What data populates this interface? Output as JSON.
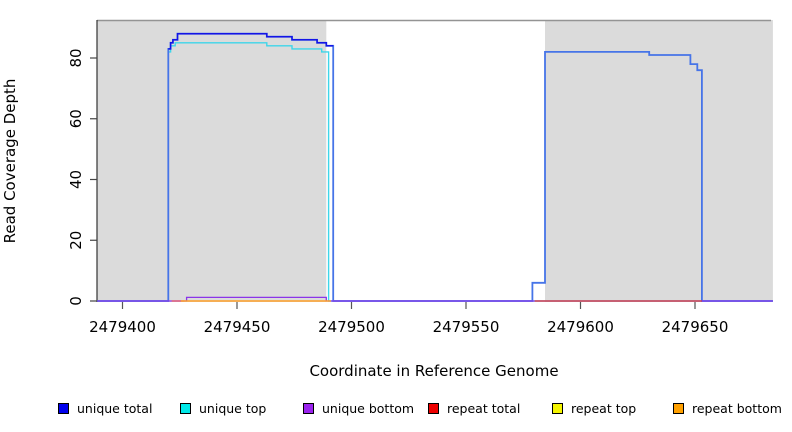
{
  "axes": {
    "x": {
      "label": "Coordinate in Reference Genome",
      "ticks": [
        "2479400",
        "2479450",
        "2479500",
        "2479550",
        "2479600",
        "2479650"
      ],
      "tick_values": [
        2479400,
        2479450,
        2479500,
        2479550,
        2479600,
        2479650
      ],
      "range": [
        2479389,
        2479684
      ]
    },
    "y": {
      "label": "Read Coverage Depth",
      "ticks": [
        "0",
        "20",
        "40",
        "60",
        "80"
      ],
      "tick_values": [
        0,
        20,
        40,
        60,
        80
      ],
      "range": [
        0,
        92
      ]
    }
  },
  "legend": [
    {
      "label": "unique total",
      "color": "#0000EE"
    },
    {
      "label": "unique top",
      "color": "#00E8E8"
    },
    {
      "label": "unique bottom",
      "color": "#9A23EE"
    },
    {
      "label": "repeat total",
      "color": "#EE0000"
    },
    {
      "label": "repeat top",
      "color": "#F5F500"
    },
    {
      "label": "repeat bottom",
      "color": "#FFA000"
    }
  ],
  "chart_data": {
    "type": "line",
    "step_mode": "after",
    "title": "",
    "xlabel": "Coordinate in Reference Genome",
    "ylabel": "Read Coverage Depth",
    "xlim": [
      2479389,
      2479684
    ],
    "ylim": [
      0,
      92
    ],
    "grid": false,
    "legend_position": "bottom",
    "shaded_regions": [
      {
        "from": 2479389,
        "to": 2479489,
        "color": "#dbdbdb"
      },
      {
        "from": 2479584.5,
        "to": 2479684,
        "color": "#dbdbdb"
      }
    ],
    "boundary_line": {
      "depth": 92.5,
      "from": 2479389,
      "to": 2479684,
      "color": "#949494"
    },
    "series": [
      {
        "name": "unique total",
        "color": "#0000EE",
        "steps": [
          [
            2479389,
            0
          ],
          [
            2479420,
            83
          ],
          [
            2479421,
            85
          ],
          [
            2479422,
            86
          ],
          [
            2479424,
            88
          ],
          [
            2479463,
            87
          ],
          [
            2479474,
            86
          ],
          [
            2479485,
            85
          ],
          [
            2479489,
            84
          ],
          [
            2479492,
            0
          ],
          [
            2479579,
            6
          ],
          [
            2479584,
            82
          ],
          [
            2479630,
            81
          ],
          [
            2479648,
            78
          ],
          [
            2479651,
            76
          ],
          [
            2479653,
            0
          ]
        ],
        "end": 2479684
      },
      {
        "name": "unique top",
        "color": "#00E8E8",
        "steps": [
          [
            2479389,
            0
          ],
          [
            2479420,
            82
          ],
          [
            2479421,
            84
          ],
          [
            2479423,
            85
          ],
          [
            2479463,
            84
          ],
          [
            2479474,
            83
          ],
          [
            2479487,
            82
          ],
          [
            2479490,
            0
          ]
        ],
        "end": 2479684
      },
      {
        "name": "unique bottom",
        "color": "#9A23EE",
        "steps": [
          [
            2479389,
            0
          ],
          [
            2479428,
            1
          ],
          [
            2479489,
            0
          ]
        ],
        "end": 2479684
      },
      {
        "name": "repeat total",
        "color": "#EE0000",
        "steps": [
          [
            2479389,
            0
          ]
        ],
        "end": 2479684
      },
      {
        "name": "repeat top",
        "color": "#F5F500",
        "steps": [
          [
            2479389,
            0
          ]
        ],
        "end": 2479684
      },
      {
        "name": "repeat bottom",
        "color": "#FFA000",
        "steps": [
          [
            2479389,
            0
          ],
          [
            2479426,
            0.5
          ],
          [
            2479491,
            0
          ]
        ],
        "end": 2479684
      }
    ],
    "render_layers": [
      {
        "name": "unique-top-line",
        "color": "#3ED6EA",
        "width": 1.4,
        "steps": [
          [
            2479389,
            0
          ],
          [
            2479420,
            82
          ],
          [
            2479421,
            84
          ],
          [
            2479423,
            85
          ],
          [
            2479463,
            84
          ],
          [
            2479474,
            83
          ],
          [
            2479487,
            82
          ],
          [
            2479490,
            0
          ]
        ],
        "end": 2479684
      },
      {
        "name": "unique-total-outline",
        "color": "#4674E8",
        "width": 1.8,
        "steps": [
          [
            2479389,
            0
          ],
          [
            2479420,
            83
          ],
          [
            2479421,
            85
          ],
          [
            2479422,
            86
          ],
          [
            2479424,
            88
          ],
          [
            2479463,
            87
          ],
          [
            2479474,
            86
          ],
          [
            2479485,
            85
          ],
          [
            2479489,
            84
          ],
          [
            2479492,
            0
          ],
          [
            2479579,
            6
          ],
          [
            2479584.5,
            82
          ],
          [
            2479630,
            81
          ],
          [
            2479648,
            78
          ],
          [
            2479651,
            76
          ],
          [
            2479653,
            0
          ]
        ],
        "end": 2479684
      },
      {
        "name": "unique-total-top",
        "color": "#1414E6",
        "width": 1.5,
        "steps": [
          [
            2479420,
            83
          ],
          [
            2479421,
            85
          ],
          [
            2479422,
            86
          ],
          [
            2479424,
            88
          ],
          [
            2479463,
            87
          ],
          [
            2479474,
            86
          ],
          [
            2479485,
            85
          ],
          [
            2479489,
            84
          ]
        ],
        "end": 2479492
      },
      {
        "name": "unique-bottom-line",
        "color": "#8A35E8",
        "width": 1.3,
        "steps": [
          [
            2479389,
            0
          ],
          [
            2479428,
            1.2
          ],
          [
            2479489,
            0
          ]
        ],
        "end": 2479684
      },
      {
        "name": "repeat-total-left",
        "color": "#E85060",
        "width": 1.2,
        "steps": [
          [
            2479421.5,
            0
          ]
        ],
        "end": 2479427
      },
      {
        "name": "repeat-total-right",
        "color": "#E83030",
        "width": 1.2,
        "steps": [
          [
            2479580,
            0
          ]
        ],
        "end": 2479653
      },
      {
        "name": "repeat-bottom-line",
        "color": "#FFA028",
        "width": 1.5,
        "steps": [
          [
            2479425.5,
            0
          ]
        ],
        "end": 2479491
      }
    ]
  }
}
